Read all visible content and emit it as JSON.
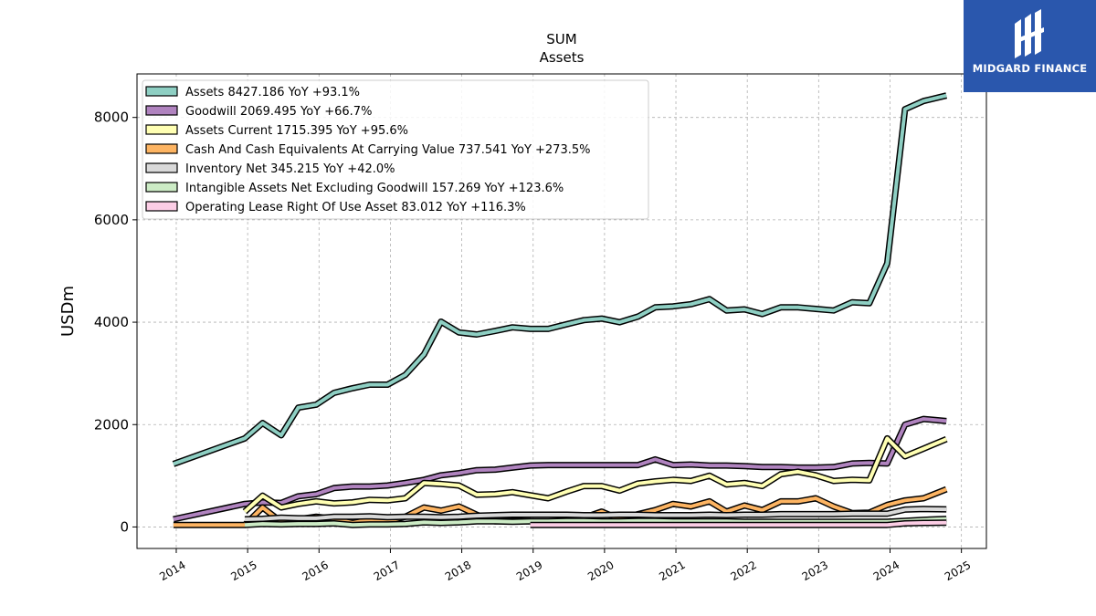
{
  "chart_data": {
    "type": "line",
    "title": "SUM",
    "subtitle": "Assets",
    "ylabel": "USDm",
    "xlabel": "",
    "xlim": [
      2013.45,
      2025.35
    ],
    "ylim": [
      -420,
      8850
    ],
    "xticks": [
      "2014",
      "2015",
      "2016",
      "2017",
      "2018",
      "2019",
      "2020",
      "2021",
      "2022",
      "2023",
      "2024",
      "2025"
    ],
    "yticks": [
      "0",
      "2000",
      "4000",
      "6000",
      "8000"
    ],
    "grid": true,
    "legend_position": "top-left",
    "series": [
      {
        "name": "Assets  8427.186 YoY +93.1%",
        "color": "#8ecfc3",
        "x": [
          2013.96,
          2014.96,
          2015.21,
          2015.47,
          2015.71,
          2015.96,
          2016.21,
          2016.47,
          2016.71,
          2016.96,
          2017.21,
          2017.47,
          2017.71,
          2017.96,
          2018.21,
          2018.47,
          2018.71,
          2018.96,
          2019.21,
          2019.47,
          2019.71,
          2019.96,
          2020.21,
          2020.47,
          2020.71,
          2020.96,
          2021.21,
          2021.47,
          2021.71,
          2021.96,
          2022.21,
          2022.47,
          2022.71,
          2022.96,
          2023.21,
          2023.47,
          2023.71,
          2023.96,
          2024.21,
          2024.47,
          2024.79
        ],
        "y": [
          1230,
          1730,
          2030,
          1790,
          2330,
          2390,
          2620,
          2710,
          2780,
          2780,
          2970,
          3370,
          4010,
          3800,
          3760,
          3830,
          3900,
          3870,
          3870,
          3960,
          4040,
          4070,
          4000,
          4110,
          4290,
          4310,
          4350,
          4450,
          4230,
          4250,
          4160,
          4290,
          4290,
          4260,
          4230,
          4390,
          4370,
          5150,
          8160,
          8320,
          8427
        ]
      },
      {
        "name": "Goodwill  2069.495 YoY +66.7%",
        "color": "#b083bf",
        "x": [
          2013.96,
          2014.96,
          2015.21,
          2015.47,
          2015.71,
          2015.96,
          2016.21,
          2016.47,
          2016.71,
          2016.96,
          2017.21,
          2017.47,
          2017.71,
          2017.96,
          2018.21,
          2018.47,
          2018.71,
          2018.96,
          2019.21,
          2019.47,
          2019.71,
          2019.96,
          2020.21,
          2020.47,
          2020.71,
          2020.96,
          2021.21,
          2021.47,
          2021.71,
          2021.96,
          2022.21,
          2022.47,
          2022.71,
          2022.96,
          2023.21,
          2023.47,
          2023.71,
          2023.96,
          2024.21,
          2024.47,
          2024.79
        ],
        "y": [
          150,
          450,
          480,
          470,
          600,
          640,
          760,
          790,
          790,
          810,
          860,
          920,
          1010,
          1050,
          1110,
          1120,
          1160,
          1200,
          1210,
          1210,
          1210,
          1210,
          1210,
          1210,
          1320,
          1210,
          1220,
          1200,
          1200,
          1190,
          1170,
          1170,
          1160,
          1160,
          1170,
          1240,
          1250,
          1240,
          2000,
          2110,
          2069
        ]
      },
      {
        "name": "Assets Current  1715.395 YoY +95.6%",
        "color": "#ffffb3",
        "x": [
          2014.96,
          2015.21,
          2015.47,
          2015.71,
          2015.96,
          2016.21,
          2016.47,
          2016.71,
          2016.96,
          2017.21,
          2017.47,
          2017.71,
          2017.96,
          2018.21,
          2018.47,
          2018.71,
          2018.96,
          2019.21,
          2019.47,
          2019.71,
          2019.96,
          2020.21,
          2020.47,
          2020.71,
          2020.96,
          2021.21,
          2021.47,
          2021.71,
          2021.96,
          2022.21,
          2022.47,
          2022.71,
          2022.96,
          2023.21,
          2023.47,
          2023.71,
          2023.96,
          2024.21,
          2024.47,
          2024.79
        ],
        "y": [
          300,
          610,
          380,
          450,
          500,
          460,
          480,
          530,
          520,
          560,
          860,
          840,
          810,
          630,
          640,
          680,
          620,
          560,
          690,
          800,
          800,
          710,
          850,
          890,
          920,
          900,
          1000,
          830,
          860,
          800,
          1030,
          1080,
          1010,
          900,
          920,
          910,
          1730,
          1380,
          1530,
          1715
        ]
      },
      {
        "name": "Cash And Cash Equivalents At Carrying Value  737.541 YoY +273.5%",
        "color": "#fdb462",
        "x": [
          2013.96,
          2014.96,
          2015.21,
          2015.47,
          2015.71,
          2015.96,
          2016.21,
          2016.47,
          2016.71,
          2016.96,
          2017.21,
          2017.47,
          2017.71,
          2017.96,
          2018.21,
          2018.47,
          2018.71,
          2018.96,
          2019.21,
          2019.47,
          2019.71,
          2019.96,
          2020.21,
          2020.47,
          2020.71,
          2020.96,
          2021.21,
          2021.47,
          2021.71,
          2021.96,
          2022.21,
          2022.47,
          2022.71,
          2022.96,
          2023.21,
          2023.47,
          2023.71,
          2023.96,
          2024.21,
          2024.47,
          2024.79
        ],
        "y": [
          40,
          40,
          380,
          100,
          150,
          200,
          160,
          80,
          140,
          110,
          200,
          380,
          320,
          400,
          240,
          110,
          120,
          110,
          80,
          120,
          180,
          300,
          150,
          250,
          330,
          450,
          400,
          500,
          300,
          420,
          330,
          500,
          500,
          560,
          400,
          270,
          280,
          430,
          520,
          560,
          737
        ]
      },
      {
        "name": "Inventory Net  345.215 YoY +42.0%",
        "color": "#d9d9d9",
        "x": [
          2014.96,
          2015.21,
          2015.47,
          2015.71,
          2015.96,
          2016.21,
          2016.47,
          2016.71,
          2016.96,
          2017.21,
          2017.47,
          2017.71,
          2017.96,
          2018.21,
          2018.47,
          2018.71,
          2018.96,
          2019.21,
          2019.47,
          2019.71,
          2019.96,
          2020.21,
          2020.47,
          2020.71,
          2020.96,
          2021.21,
          2021.47,
          2021.71,
          2021.96,
          2022.21,
          2022.47,
          2022.71,
          2022.96,
          2023.21,
          2023.47,
          2023.71,
          2023.96,
          2024.21,
          2024.47,
          2024.79
        ],
        "y": [
          150,
          160,
          180,
          170,
          170,
          200,
          200,
          210,
          190,
          200,
          200,
          190,
          200,
          220,
          230,
          240,
          240,
          240,
          240,
          230,
          230,
          240,
          240,
          230,
          230,
          230,
          240,
          230,
          240,
          240,
          250,
          250,
          250,
          250,
          260,
          260,
          260,
          340,
          350,
          345
        ]
      },
      {
        "name": "Intangible Assets Net Excluding Goodwill  157.269 YoY +123.6%",
        "color": "#ccebc5",
        "x": [
          2014.96,
          2015.21,
          2015.47,
          2015.71,
          2015.96,
          2016.21,
          2016.47,
          2016.71,
          2016.96,
          2017.21,
          2017.47,
          2017.71,
          2017.96,
          2018.21,
          2018.47,
          2018.71,
          2018.96,
          2019.21,
          2019.47,
          2019.71,
          2019.96,
          2020.21,
          2020.47,
          2020.71,
          2020.96,
          2021.21,
          2021.47,
          2021.71,
          2021.96,
          2022.21,
          2022.47,
          2022.71,
          2022.96,
          2023.21,
          2023.47,
          2023.71,
          2023.96,
          2024.21,
          2024.47,
          2024.79
        ],
        "y": [
          40,
          60,
          50,
          60,
          60,
          70,
          40,
          50,
          50,
          60,
          90,
          80,
          90,
          110,
          110,
          100,
          110,
          110,
          120,
          120,
          110,
          110,
          120,
          120,
          110,
          110,
          110,
          110,
          100,
          100,
          100,
          100,
          100,
          100,
          100,
          100,
          100,
          120,
          140,
          157
        ]
      },
      {
        "name": "Operating Lease Right Of Use Asset  83.012 YoY +116.3%",
        "color": "#fccde5",
        "x": [
          2018.96,
          2019.21,
          2019.47,
          2019.71,
          2019.96,
          2020.21,
          2020.47,
          2020.71,
          2020.96,
          2021.21,
          2021.47,
          2021.71,
          2021.96,
          2022.21,
          2022.47,
          2022.71,
          2022.96,
          2023.21,
          2023.47,
          2023.71,
          2023.96,
          2024.21,
          2024.47,
          2024.79
        ],
        "y": [
          40,
          40,
          40,
          40,
          40,
          40,
          40,
          40,
          40,
          40,
          40,
          40,
          40,
          40,
          40,
          40,
          40,
          40,
          40,
          40,
          40,
          70,
          80,
          83
        ]
      }
    ]
  },
  "branding": {
    "logo_text": "MIDGARD FINANCE"
  }
}
